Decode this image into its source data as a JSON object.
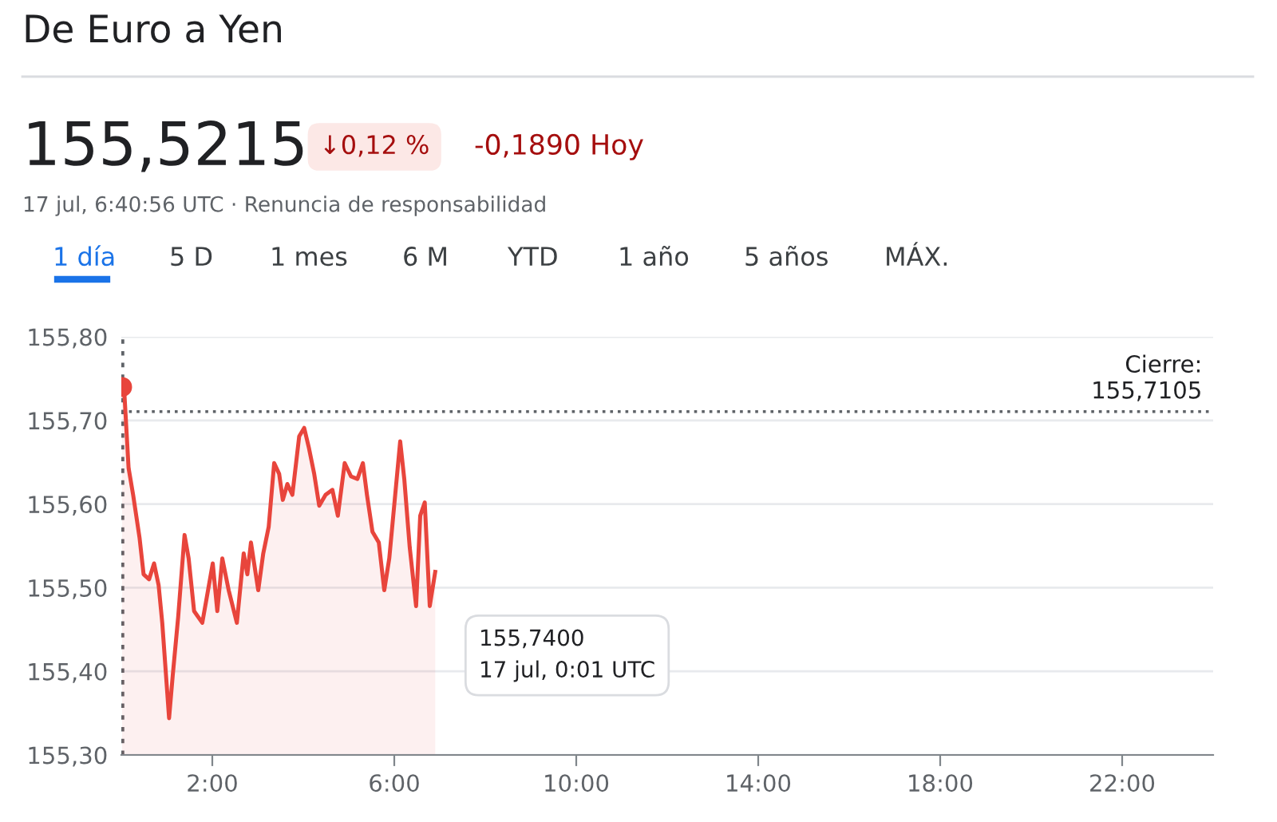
{
  "chart_data": {
    "type": "area",
    "title": "De Euro a Yen",
    "subtitle": "155,5215",
    "annotations": [
      "↓0,12 %",
      "-0,1890 Hoy",
      "17 jul, 6:40:56 UTC · Renuncia de responsabilidad",
      "1 día",
      "5 D",
      "1 mes",
      "6 M",
      "YTD",
      "1 año",
      "5 años",
      "MÁX.",
      "155,7400\n17 jul, 0:01 UTC"
    ],
    "x": [
      0.017,
      0.07,
      0.16,
      0.26,
      0.4,
      0.49,
      0.61,
      0.72,
      0.82,
      0.9,
      1.05,
      1.13,
      1.25,
      1.39,
      1.48,
      1.6,
      1.78,
      2.01,
      2.11,
      2.22,
      2.36,
      2.54,
      2.69,
      2.77,
      2.85,
      3.01,
      3.12,
      3.24,
      3.36,
      3.47,
      3.55,
      3.65,
      3.76,
      3.91,
      4.02,
      4.12,
      4.24,
      4.35,
      4.49,
      4.64,
      4.76,
      4.91,
      5.05,
      5.19,
      5.31,
      5.4,
      5.52,
      5.66,
      5.78,
      5.89,
      6.01,
      6.13,
      6.22,
      6.34,
      6.48,
      6.57,
      6.67,
      6.78,
      6.9
    ],
    "series": [
      {
        "color": "#e8453c",
        "values": [
          155.74,
          155.73,
          155.643,
          155.611,
          155.56,
          155.516,
          155.51,
          155.529,
          155.503,
          155.458,
          155.344,
          155.395,
          155.465,
          155.563,
          155.535,
          155.472,
          155.458,
          155.529,
          155.472,
          155.535,
          155.497,
          155.458,
          155.541,
          155.516,
          155.554,
          155.497,
          155.541,
          155.573,
          155.649,
          155.636,
          155.605,
          155.624,
          155.611,
          155.681,
          155.691,
          155.668,
          155.636,
          155.598,
          155.611,
          155.617,
          155.586,
          155.649,
          155.633,
          155.63,
          155.649,
          155.611,
          155.567,
          155.554,
          155.497,
          155.535,
          155.605,
          155.675,
          155.63,
          155.548,
          155.478,
          155.586,
          155.602,
          155.478,
          155.519
        ]
      }
    ],
    "xlim": [
      0,
      24
    ],
    "ylim": [
      155.3,
      155.8
    ],
    "xticks": [
      {
        "value": 2,
        "label": "2:00"
      },
      {
        "value": 6,
        "label": "6:00"
      },
      {
        "value": 10,
        "label": "10:00"
      },
      {
        "value": 14,
        "label": "14:00"
      },
      {
        "value": 18,
        "label": "18:00"
      },
      {
        "value": 22,
        "label": "22:00"
      }
    ],
    "yticks": [
      {
        "value": 155.3,
        "label": "155,30"
      },
      {
        "value": 155.4,
        "label": "155,40"
      },
      {
        "value": 155.5,
        "label": "155,50"
      },
      {
        "value": 155.6,
        "label": "155,60"
      },
      {
        "value": 155.7,
        "label": "155,70"
      },
      {
        "value": 155.8,
        "label": "155,80"
      }
    ],
    "ref_lines": [
      {
        "axis": "y",
        "value": 155.7105,
        "label": "Cierre:\n155,7105",
        "color": "#5f6368",
        "line_style": "dotted"
      },
      {
        "axis": "x",
        "value": 0.017,
        "color": "#5f6368",
        "line_style": "dotted"
      }
    ],
    "grid": "y"
  }
}
